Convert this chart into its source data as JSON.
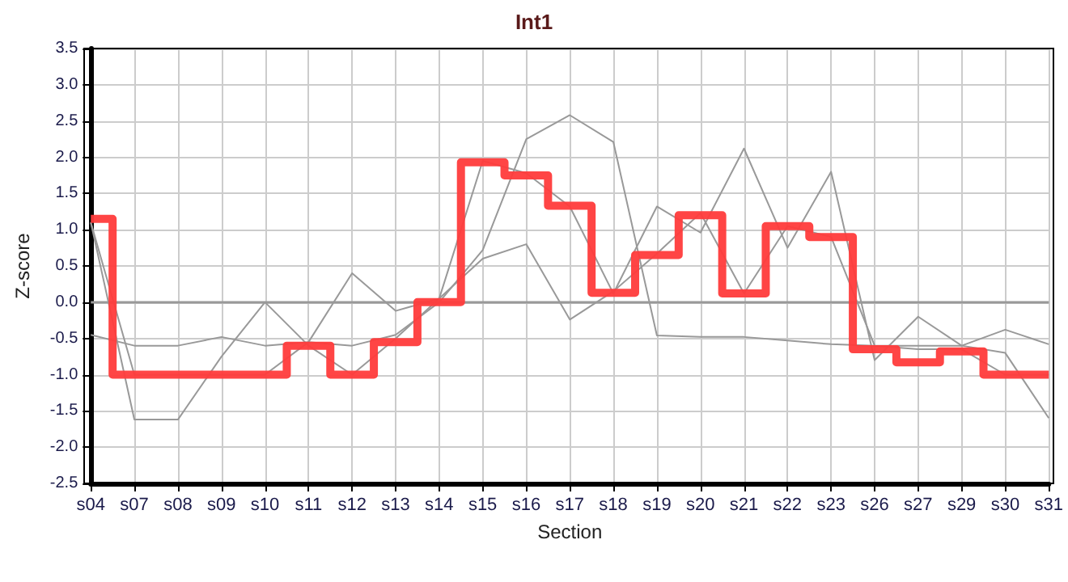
{
  "chart_data": {
    "type": "line",
    "title": "Int1",
    "xlabel": "Section",
    "ylabel": "Z-score",
    "categories": [
      "s04",
      "s07",
      "s08",
      "s09",
      "s10",
      "s11",
      "s12",
      "s13",
      "s14",
      "s15",
      "s16",
      "s17",
      "s18",
      "s19",
      "s20",
      "s21",
      "s22",
      "s23",
      "s26",
      "s27",
      "s29",
      "s30",
      "s31"
    ],
    "series": [
      {
        "color": "#999999",
        "values": [
          -0.45,
          -0.6,
          -0.6,
          -0.48,
          -0.6,
          -0.55,
          -0.6,
          -0.45,
          0.0,
          0.72,
          2.25,
          2.58,
          2.21,
          -0.46,
          -0.48,
          -0.48,
          -0.53,
          -0.58,
          -0.6,
          -0.6,
          -0.6,
          -0.38,
          -0.58
        ]
      },
      {
        "color": "#999999",
        "values": [
          1.1,
          -1.62,
          -1.62,
          -0.75,
          0.0,
          -0.6,
          -1.0,
          -0.5,
          0.05,
          1.95,
          1.78,
          1.32,
          0.12,
          1.32,
          0.96,
          2.12,
          0.75,
          1.8,
          -0.8,
          -0.2,
          -0.6,
          -0.7,
          -1.6
        ]
      },
      {
        "color": "#999999",
        "values": [
          1.1,
          -1.0,
          -1.0,
          -1.0,
          -1.0,
          -0.55,
          0.4,
          -0.12,
          0.05,
          0.6,
          0.8,
          -0.24,
          0.15,
          0.67,
          1.23,
          0.12,
          1.05,
          0.9,
          -0.6,
          -0.65,
          -0.65,
          -1.0,
          -1.0
        ]
      },
      {
        "type": "step",
        "color": "#ff3b3b",
        "values": [
          1.15,
          -1.0,
          -1.0,
          -1.0,
          -1.0,
          -0.6,
          -1.0,
          -0.55,
          0.0,
          1.93,
          1.75,
          1.33,
          0.13,
          0.65,
          1.2,
          0.12,
          1.05,
          0.9,
          -0.65,
          -0.83,
          -0.68,
          -1.0,
          -1.0
        ]
      }
    ],
    "ylim": [
      -2.5,
      3.5
    ],
    "yticks": [
      {
        "value": -2.5,
        "label": "-2.5"
      },
      {
        "value": -2,
        "label": "-2.0"
      },
      {
        "value": -1.5,
        "label": "-1.5"
      },
      {
        "value": -1,
        "label": "-1.0"
      },
      {
        "value": -0.5,
        "label": "-0.5"
      },
      {
        "value": 0,
        "label": "0.0"
      },
      {
        "value": 0.5,
        "label": "0.5"
      },
      {
        "value": 1,
        "label": "1.0"
      },
      {
        "value": 1.5,
        "label": "1.5"
      },
      {
        "value": 2,
        "label": "2.0"
      },
      {
        "value": 2.5,
        "label": "2.5"
      },
      {
        "value": 3,
        "label": "3.0"
      },
      {
        "value": 3.5,
        "label": "3.5"
      }
    ],
    "ref_lines": [
      {
        "axis": "y",
        "value": 0,
        "color": "#999999"
      }
    ],
    "grid": true,
    "marker": "none"
  }
}
